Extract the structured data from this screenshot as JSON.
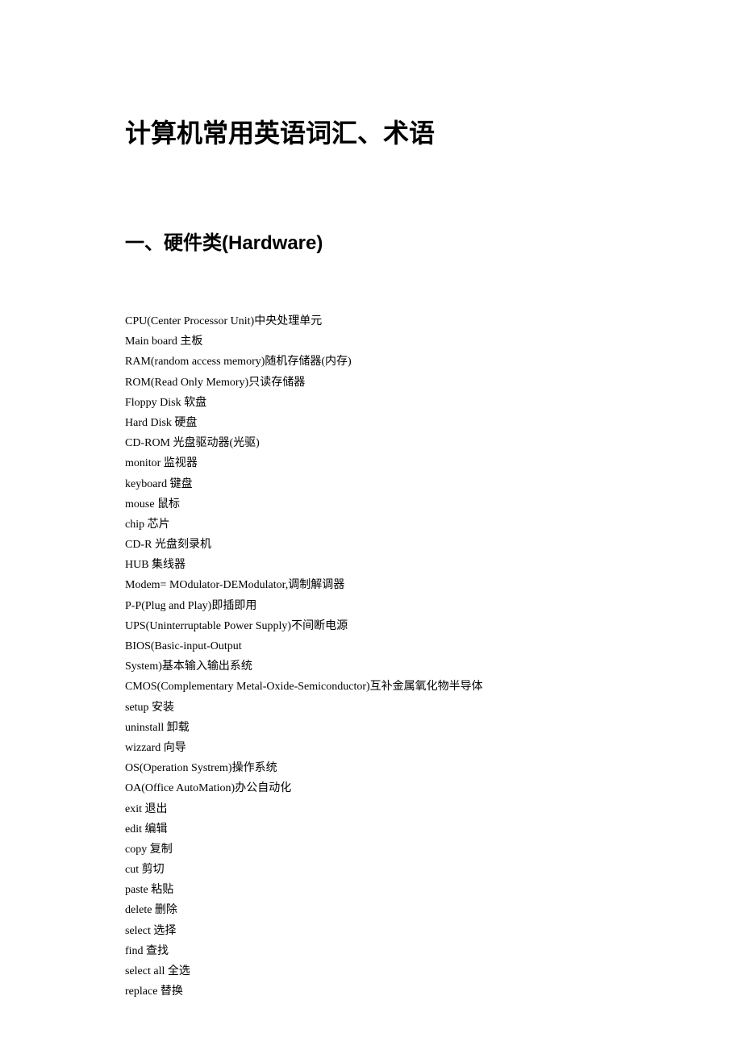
{
  "document": {
    "title": "计算机常用英语词汇、术语",
    "section_title": "一、硬件类(Hardware)",
    "title_fontsize": 32,
    "section_fontsize": 24,
    "body_fontsize": 14,
    "text_color": "#000000",
    "background_color": "#ffffff",
    "line_height": 1.8,
    "terms": [
      "CPU(Center Processor Unit)中央处理单元",
      "Main board 主板",
      "RAM(random access memory)随机存储器(内存)",
      "ROM(Read Only Memory)只读存储器",
      "Floppy Disk 软盘",
      "Hard Disk 硬盘",
      "CD-ROM 光盘驱动器(光驱)",
      "monitor 监视器",
      "keyboard 键盘",
      "mouse 鼠标",
      "chip 芯片",
      "CD-R 光盘刻录机",
      "HUB 集线器",
      "Modem= MOdulator-DEModulator,调制解调器",
      "P-P(Plug and Play)即插即用",
      "UPS(Uninterruptable Power Supply)不间断电源",
      "BIOS(Basic-input-Output",
      "System)基本输入输出系统",
      "CMOS(Complementary Metal-Oxide-Semiconductor)互补金属氧化物半导体",
      "setup 安装",
      "uninstall 卸载",
      "wizzard 向导",
      "OS(Operation Systrem)操作系统",
      "OA(Office AutoMation)办公自动化",
      "exit 退出",
      "edit 编辑",
      "copy 复制",
      "cut 剪切",
      "paste 粘贴",
      "delete 删除",
      "select 选择",
      "find 查找",
      "select all 全选",
      "replace 替换"
    ]
  }
}
